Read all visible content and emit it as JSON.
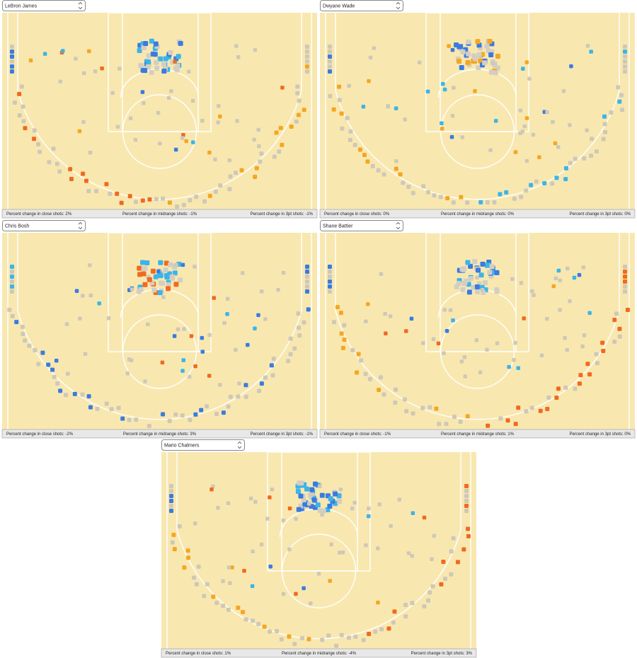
{
  "panels": [
    {
      "player": "LeBron James",
      "close": "Percent change in close shots: 2%",
      "mid": "Percent change in midrange shots: -1%",
      "three": "Percent change in 3pt shots: -1%"
    },
    {
      "player": "Dwyane Wade",
      "close": "Percent change in close shots: 0%",
      "mid": "Percent change in midrange shots: 0%",
      "three": "Percent change in 3pt shots: 0%"
    },
    {
      "player": "Chris Bosh",
      "close": "Percent change in close shots: -2%",
      "mid": "Percent change in midrange shots: 3%",
      "three": "Percent change in 3pt shots: -1%"
    },
    {
      "player": "Shane Battier",
      "close": "Percent change in close shots: -1%",
      "mid": "Percent change in midrange shots: 1%",
      "three": "Percent change in 3pt shots: 0%"
    },
    {
      "player": "Mario Chalmers",
      "close": "Percent change in close shots: 1%",
      "mid": "Percent change in midrange shots: -4%",
      "three": "Percent change in 3pt shots: 3%"
    }
  ]
}
